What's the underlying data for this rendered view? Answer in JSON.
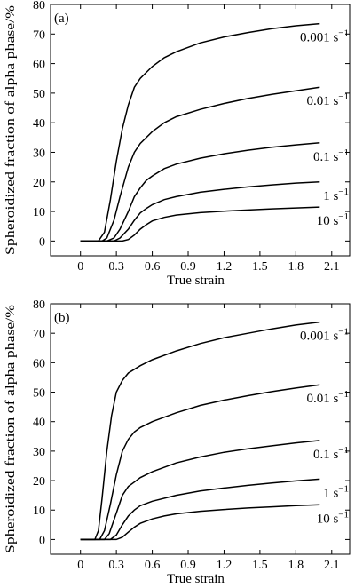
{
  "chart_data": [
    {
      "type": "line",
      "panel_label": "(a)",
      "xlabel": "True strain",
      "ylabel": "Spheroidized fraction of alpha phase/%",
      "xlim": [
        -0.25,
        2.25
      ],
      "ylim": [
        -5,
        80
      ],
      "xticks": [
        0,
        0.3,
        0.6,
        0.9,
        1.2,
        1.5,
        1.8,
        2.1
      ],
      "xtick_labels": [
        "0",
        "0.3",
        "0.6",
        "0.9",
        "1.2",
        "1.5",
        "1.8",
        "2.1"
      ],
      "yticks": [
        0,
        10,
        20,
        30,
        40,
        50,
        60,
        70,
        80
      ],
      "ytick_labels": [
        "0",
        "10",
        "20",
        "30",
        "40",
        "50",
        "60",
        "70",
        "80"
      ],
      "series": [
        {
          "label_base": "0.001",
          "label_unit": "s",
          "label_exp": "−1",
          "points": [
            [
              0,
              0
            ],
            [
              0.15,
              0
            ],
            [
              0.2,
              3
            ],
            [
              0.25,
              14
            ],
            [
              0.3,
              27
            ],
            [
              0.35,
              38
            ],
            [
              0.4,
              46
            ],
            [
              0.45,
              52
            ],
            [
              0.5,
              55
            ],
            [
              0.6,
              59
            ],
            [
              0.7,
              62
            ],
            [
              0.8,
              64
            ],
            [
              1.0,
              67
            ],
            [
              1.2,
              69
            ],
            [
              1.4,
              70.5
            ],
            [
              1.6,
              71.8
            ],
            [
              1.8,
              72.8
            ],
            [
              2.0,
              73.5
            ]
          ]
        },
        {
          "label_base": "0.01",
          "label_unit": "s",
          "label_exp": "−1",
          "points": [
            [
              0,
              0
            ],
            [
              0.18,
              0
            ],
            [
              0.22,
              1
            ],
            [
              0.28,
              7
            ],
            [
              0.33,
              15
            ],
            [
              0.4,
              25
            ],
            [
              0.45,
              30
            ],
            [
              0.5,
              33
            ],
            [
              0.6,
              37
            ],
            [
              0.7,
              40
            ],
            [
              0.8,
              42
            ],
            [
              1.0,
              44.5
            ],
            [
              1.2,
              46.5
            ],
            [
              1.4,
              48.2
            ],
            [
              1.6,
              49.6
            ],
            [
              1.8,
              50.8
            ],
            [
              2.0,
              52
            ]
          ]
        },
        {
          "label_base": "0.1",
          "label_unit": "s",
          "label_exp": "−1",
          "points": [
            [
              0,
              0
            ],
            [
              0.22,
              0
            ],
            [
              0.28,
              1
            ],
            [
              0.33,
              4
            ],
            [
              0.4,
              10
            ],
            [
              0.45,
              15
            ],
            [
              0.5,
              18
            ],
            [
              0.55,
              20.5
            ],
            [
              0.6,
              22
            ],
            [
              0.7,
              24.5
            ],
            [
              0.8,
              26
            ],
            [
              1.0,
              28
            ],
            [
              1.2,
              29.5
            ],
            [
              1.4,
              30.7
            ],
            [
              1.6,
              31.7
            ],
            [
              1.8,
              32.5
            ],
            [
              2.0,
              33.2
            ]
          ]
        },
        {
          "label_base": "1",
          "label_unit": "s",
          "label_exp": "−1",
          "points": [
            [
              0,
              0
            ],
            [
              0.28,
              0
            ],
            [
              0.33,
              1
            ],
            [
              0.4,
              4
            ],
            [
              0.45,
              7
            ],
            [
              0.5,
              9.5
            ],
            [
              0.55,
              11
            ],
            [
              0.6,
              12.3
            ],
            [
              0.7,
              14
            ],
            [
              0.8,
              15
            ],
            [
              1.0,
              16.5
            ],
            [
              1.2,
              17.5
            ],
            [
              1.4,
              18.3
            ],
            [
              1.6,
              19
            ],
            [
              1.8,
              19.6
            ],
            [
              2.0,
              20
            ]
          ]
        },
        {
          "label_base": "10",
          "label_unit": "s",
          "label_exp": "−1",
          "points": [
            [
              0,
              0
            ],
            [
              0.35,
              0
            ],
            [
              0.4,
              0.5
            ],
            [
              0.45,
              2
            ],
            [
              0.5,
              4
            ],
            [
              0.55,
              5.5
            ],
            [
              0.6,
              6.8
            ],
            [
              0.7,
              8
            ],
            [
              0.8,
              8.8
            ],
            [
              1.0,
              9.6
            ],
            [
              1.2,
              10.1
            ],
            [
              1.4,
              10.5
            ],
            [
              1.6,
              10.9
            ],
            [
              1.8,
              11.2
            ],
            [
              2.0,
              11.5
            ]
          ]
        }
      ]
    },
    {
      "type": "line",
      "panel_label": "(b)",
      "xlabel": "True strain",
      "ylabel": "Spheroidized fraction of alpha phase/%",
      "xlim": [
        -0.25,
        2.25
      ],
      "ylim": [
        -5,
        80
      ],
      "xticks": [
        0,
        0.3,
        0.6,
        0.9,
        1.2,
        1.5,
        1.8,
        2.1
      ],
      "xtick_labels": [
        "0",
        "0.3",
        "0.6",
        "0.9",
        "1.2",
        "1.5",
        "1.8",
        "2.1"
      ],
      "yticks": [
        0,
        10,
        20,
        30,
        40,
        50,
        60,
        70,
        80
      ],
      "ytick_labels": [
        "0",
        "10",
        "20",
        "30",
        "40",
        "50",
        "60",
        "70",
        "80"
      ],
      "series": [
        {
          "label_base": "0.001",
          "label_unit": "s",
          "label_exp": "−1",
          "points": [
            [
              0,
              0
            ],
            [
              0.12,
              0
            ],
            [
              0.15,
              3
            ],
            [
              0.18,
              14
            ],
            [
              0.22,
              30
            ],
            [
              0.26,
              42
            ],
            [
              0.3,
              50
            ],
            [
              0.35,
              54
            ],
            [
              0.4,
              56.5
            ],
            [
              0.5,
              59
            ],
            [
              0.6,
              61
            ],
            [
              0.8,
              64
            ],
            [
              1.0,
              66.5
            ],
            [
              1.2,
              68.5
            ],
            [
              1.4,
              70
            ],
            [
              1.6,
              71.5
            ],
            [
              1.8,
              72.8
            ],
            [
              2.0,
              73.8
            ]
          ]
        },
        {
          "label_base": "0.01",
          "label_unit": "s",
          "label_exp": "−1",
          "points": [
            [
              0,
              0
            ],
            [
              0.16,
              0
            ],
            [
              0.2,
              3
            ],
            [
              0.25,
              12
            ],
            [
              0.3,
              22
            ],
            [
              0.35,
              30
            ],
            [
              0.4,
              34
            ],
            [
              0.45,
              36.5
            ],
            [
              0.5,
              38
            ],
            [
              0.6,
              40
            ],
            [
              0.8,
              43
            ],
            [
              1.0,
              45.5
            ],
            [
              1.2,
              47.3
            ],
            [
              1.4,
              48.8
            ],
            [
              1.6,
              50.2
            ],
            [
              1.8,
              51.4
            ],
            [
              2.0,
              52.5
            ]
          ]
        },
        {
          "label_base": "0.1",
          "label_unit": "s",
          "label_exp": "−1",
          "points": [
            [
              0,
              0
            ],
            [
              0.2,
              0
            ],
            [
              0.24,
              2
            ],
            [
              0.3,
              9
            ],
            [
              0.35,
              15
            ],
            [
              0.4,
              18
            ],
            [
              0.45,
              19.5
            ],
            [
              0.5,
              21
            ],
            [
              0.6,
              23
            ],
            [
              0.8,
              26
            ],
            [
              1.0,
              28
            ],
            [
              1.2,
              29.6
            ],
            [
              1.4,
              30.8
            ],
            [
              1.6,
              31.8
            ],
            [
              1.8,
              32.8
            ],
            [
              2.0,
              33.6
            ]
          ]
        },
        {
          "label_base": "1",
          "label_unit": "s",
          "label_exp": "−1",
          "points": [
            [
              0,
              0
            ],
            [
              0.25,
              0
            ],
            [
              0.3,
              1.5
            ],
            [
              0.35,
              5
            ],
            [
              0.4,
              8
            ],
            [
              0.45,
              10
            ],
            [
              0.5,
              11.5
            ],
            [
              0.6,
              13
            ],
            [
              0.8,
              15
            ],
            [
              1.0,
              16.5
            ],
            [
              1.2,
              17.5
            ],
            [
              1.4,
              18.4
            ],
            [
              1.6,
              19.2
            ],
            [
              1.8,
              19.9
            ],
            [
              2.0,
              20.5
            ]
          ]
        },
        {
          "label_base": "10",
          "label_unit": "s",
          "label_exp": "−1",
          "points": [
            [
              0,
              0
            ],
            [
              0.3,
              0
            ],
            [
              0.35,
              0.8
            ],
            [
              0.4,
              2.5
            ],
            [
              0.45,
              4.2
            ],
            [
              0.5,
              5.5
            ],
            [
              0.6,
              7
            ],
            [
              0.7,
              8
            ],
            [
              0.8,
              8.7
            ],
            [
              1.0,
              9.6
            ],
            [
              1.2,
              10.2
            ],
            [
              1.4,
              10.7
            ],
            [
              1.6,
              11.1
            ],
            [
              1.8,
              11.5
            ],
            [
              2.0,
              11.8
            ]
          ]
        }
      ]
    }
  ]
}
